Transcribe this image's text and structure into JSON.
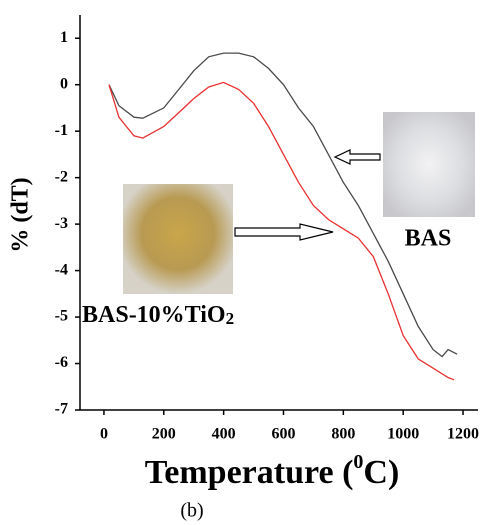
{
  "chart_data": {
    "type": "line",
    "y_label": "% (dT)",
    "x_label": [
      "Temperature (",
      "0",
      "C)"
    ],
    "caption": "(b)",
    "annotations": {
      "bas": "BAS",
      "bas_tio2": [
        "BAS-10%TiO",
        "2"
      ]
    },
    "xlim": [
      -80,
      1250
    ],
    "ylim": [
      -7,
      1.5
    ],
    "xticks": [
      0,
      200,
      400,
      600,
      800,
      1000,
      1200
    ],
    "yticks": [
      1,
      0,
      -1,
      -2,
      -3,
      -4,
      -5,
      -6,
      -7
    ],
    "series": [
      {
        "color": "#4a4a4a",
        "x": [
          17,
          50,
          100,
          130,
          200,
          250,
          300,
          350,
          400,
          450,
          500,
          550,
          600,
          650,
          700,
          750,
          800,
          850,
          900,
          950,
          1000,
          1050,
          1100,
          1130,
          1150,
          1180
        ],
        "values": [
          0.0,
          -0.45,
          -0.7,
          -0.72,
          -0.5,
          -0.1,
          0.3,
          0.6,
          0.68,
          0.68,
          0.6,
          0.35,
          0.0,
          -0.5,
          -0.9,
          -1.5,
          -2.1,
          -2.6,
          -3.2,
          -3.8,
          -4.5,
          -5.2,
          -5.7,
          -5.85,
          -5.7,
          -5.8
        ]
      },
      {
        "color": "#e83030",
        "x": [
          17,
          50,
          100,
          130,
          200,
          250,
          300,
          350,
          400,
          450,
          500,
          550,
          600,
          650,
          700,
          750,
          800,
          850,
          900,
          950,
          1000,
          1050,
          1100,
          1150,
          1170
        ],
        "values": [
          0.0,
          -0.7,
          -1.1,
          -1.15,
          -0.9,
          -0.6,
          -0.3,
          -0.05,
          0.05,
          -0.1,
          -0.4,
          -0.9,
          -1.5,
          -2.1,
          -2.6,
          -2.9,
          -3.1,
          -3.3,
          -3.7,
          -4.5,
          -5.4,
          -5.9,
          -6.1,
          -6.3,
          -6.35
        ]
      }
    ]
  }
}
